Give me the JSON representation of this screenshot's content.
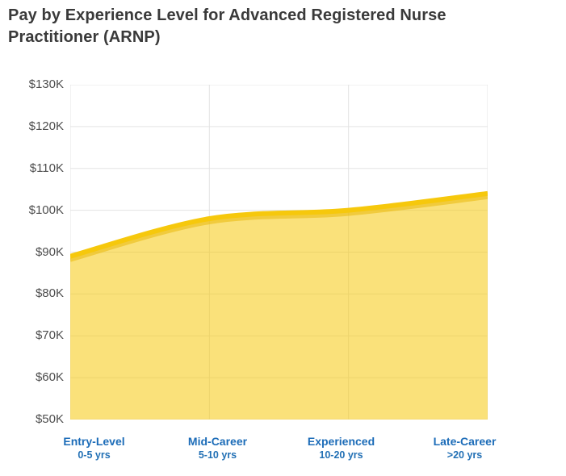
{
  "page": {
    "title": "Pay by Experience Level for Advanced Registered Nurse Practitioner (ARNP)"
  },
  "chart_data": {
    "type": "area",
    "title": "Pay by Experience Level for Advanced Registered Nurse Practitioner (ARNP)",
    "categories": [
      "Entry-Level",
      "Mid-Career",
      "Experienced",
      "Late-Career"
    ],
    "category_sublabels": [
      "0-5 yrs",
      "5-10 yrs",
      "10-20 yrs",
      ">20 yrs"
    ],
    "values": [
      89000,
      98000,
      100000,
      104000
    ],
    "ylim": [
      50000,
      130000
    ],
    "y_tick_interval": 10000,
    "y_tick_labels": [
      "$130K",
      "$120K",
      "$110K",
      "$100K",
      "$90K",
      "$80K",
      "$70K",
      "$60K",
      "$50K"
    ],
    "xlabel": "",
    "ylabel": "",
    "grid": "on",
    "legend": "none",
    "colors": {
      "line": "#f6c80c",
      "line_shadow": "#d9a70a",
      "area_fill": "#f6c80c",
      "area_fill_opacity": "0.55",
      "grid": "#e3e3e3",
      "x_label": "#1c6cb8",
      "y_label": "#4e4e4e",
      "title": "#3a3a3a"
    }
  }
}
